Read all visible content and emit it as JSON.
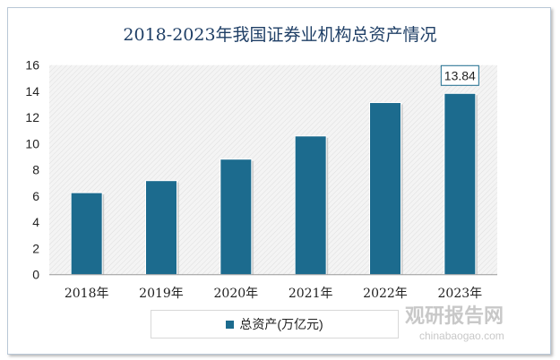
{
  "chart_data": {
    "type": "bar",
    "title": "2018-2023年我国证券业机构总资产情况",
    "categories": [
      "2018年",
      "2019年",
      "2020年",
      "2021年",
      "2022年",
      "2023年"
    ],
    "series": [
      {
        "name": "总资产(万亿元)",
        "values": [
          6.26,
          7.18,
          8.82,
          10.59,
          13.14,
          13.84
        ]
      }
    ],
    "data_labels": [
      {
        "category": "2023年",
        "text": "13.84"
      }
    ],
    "ylim": [
      0,
      16
    ],
    "yticks": [
      0,
      2,
      4,
      6,
      8,
      10,
      12,
      14,
      16
    ],
    "grid": false,
    "legend": "bottom",
    "colors": {
      "bar": "#1c6b8e",
      "title": "#1f3f66"
    }
  },
  "watermark": {
    "name": "观研报告网",
    "url": "chinabaogao.com"
  }
}
